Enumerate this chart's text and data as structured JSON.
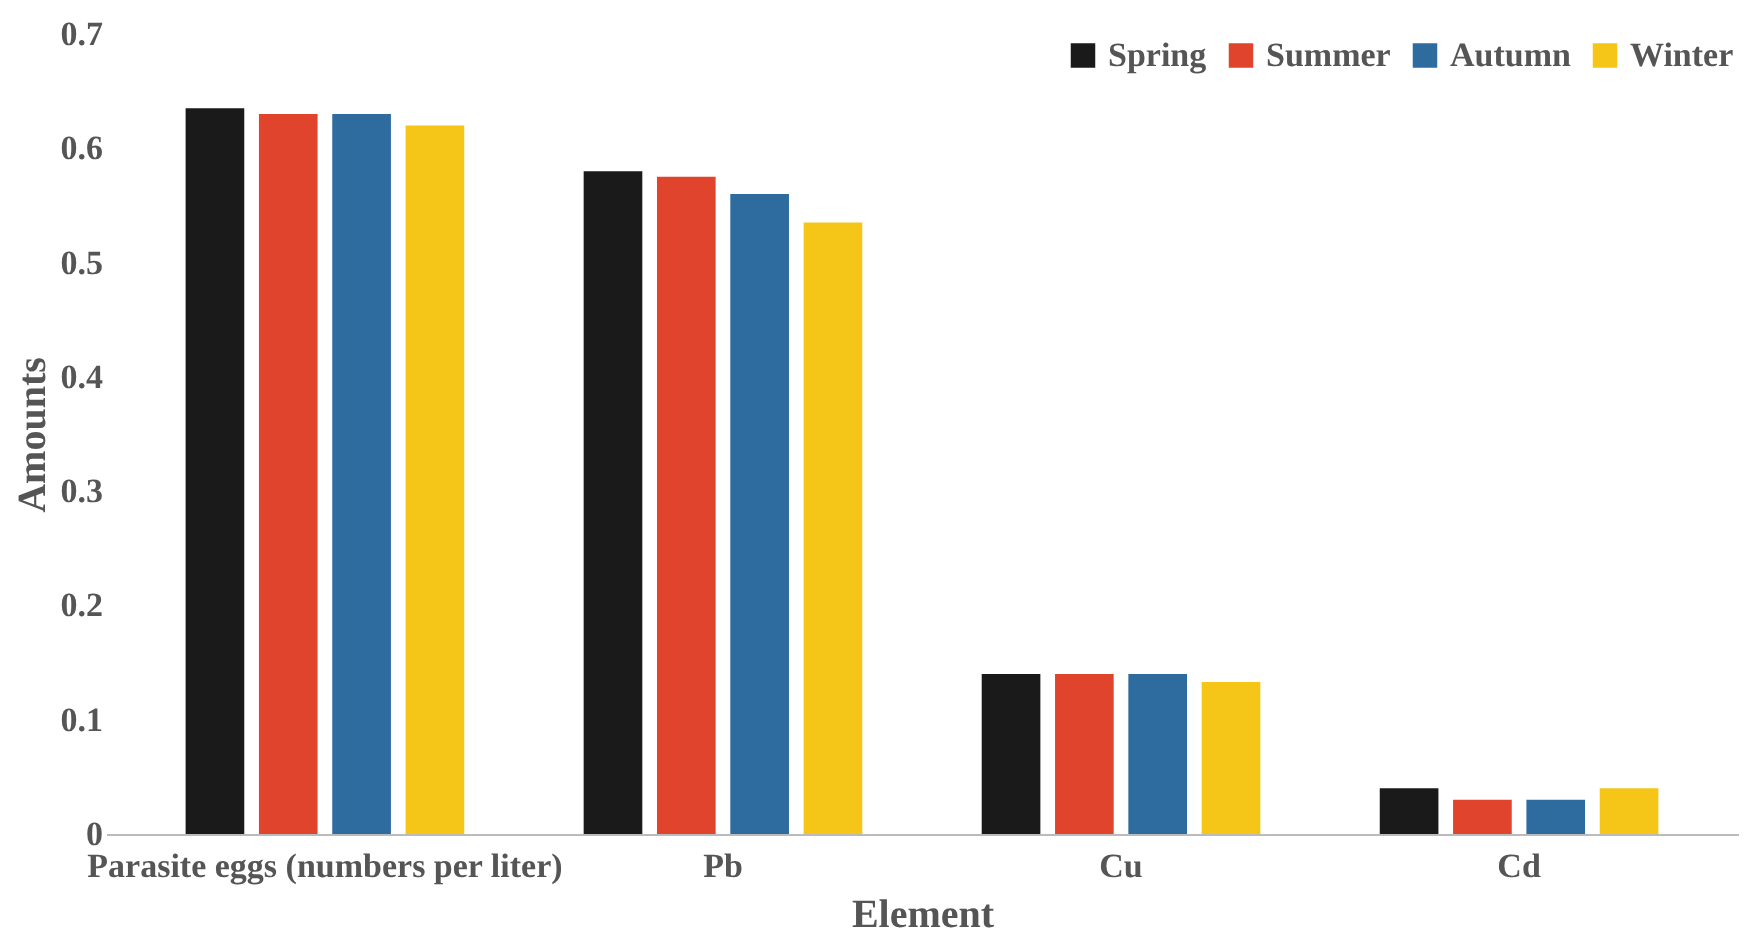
{
  "chart_data": {
    "type": "bar",
    "xlabel": "Element",
    "ylabel": "Amounts",
    "categories": [
      "Parasite eggs (numbers per liter)",
      "Pb",
      "Cu",
      "Cd"
    ],
    "series": [
      {
        "name": "Spring",
        "color": "#1a1a1a",
        "values": [
          0.635,
          0.58,
          0.14,
          0.04
        ]
      },
      {
        "name": "Summer",
        "color": "#e0442c",
        "values": [
          0.63,
          0.575,
          0.14,
          0.03
        ]
      },
      {
        "name": "Autumn",
        "color": "#2e6b9e",
        "values": [
          0.63,
          0.56,
          0.14,
          0.03
        ]
      },
      {
        "name": "Winter",
        "color": "#f5c518",
        "values": [
          0.62,
          0.535,
          0.133,
          0.04
        ]
      }
    ],
    "ylim": [
      0,
      0.7
    ],
    "yticks": [
      0,
      0.1,
      0.2,
      0.3,
      0.4,
      0.5,
      0.6,
      0.7
    ],
    "grid": false,
    "legend": "top right"
  }
}
